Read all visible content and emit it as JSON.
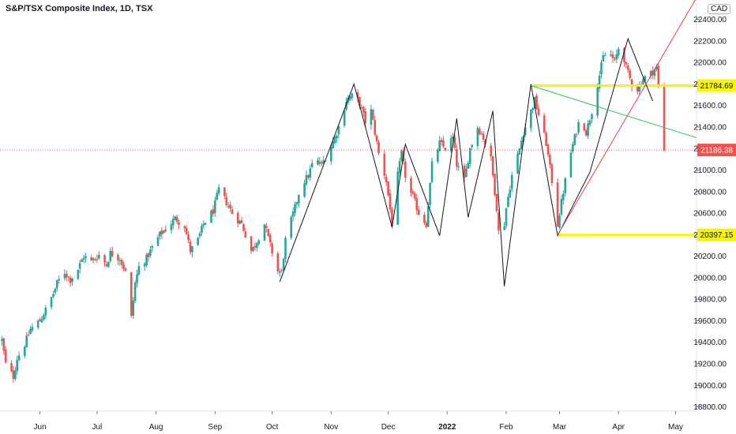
{
  "header": {
    "title": "S&P/TSX Composite Index, 1D, TSX",
    "currency": "CAD"
  },
  "colors": {
    "up": "#26a69a",
    "down": "#ef5350",
    "highlight": "#f5f500",
    "trend_red": "#f23645",
    "trend_green": "#22c55e",
    "zigzag": "#131722",
    "axis": "#131722"
  },
  "chart_data": {
    "type": "candlestick",
    "title": "S&P/TSX Composite Index, 1D, TSX",
    "currency": "CAD",
    "x_tick_labels": [
      "Jun",
      "Jul",
      "Aug",
      "Sep",
      "Oct",
      "Nov",
      "Dec",
      "2022",
      "Feb",
      "Mar",
      "Apr",
      "May"
    ],
    "x_tick_dates": [
      "2021-06-01",
      "2021-07-01",
      "2021-08-01",
      "2021-09-01",
      "2021-10-01",
      "2021-11-01",
      "2021-12-01",
      "2022-01-01",
      "2022-02-01",
      "2022-03-01",
      "2022-04-01",
      "2022-05-01"
    ],
    "y_tick_values": [
      18800,
      19000,
      19200,
      19400,
      19600,
      19800,
      20000,
      20200,
      20400,
      20600,
      20800,
      21000,
      21200,
      21400,
      21600,
      21800,
      22000,
      22200,
      22400
    ],
    "y_tick_labels": [
      "18800.00",
      "19000.00",
      "19200.00",
      "19400.00",
      "19600.00",
      "19800.00",
      "20000.00",
      "20200.00",
      "20400.00",
      "20600.00",
      "20800.00",
      "21000.00",
      "21200.00",
      "21400.00",
      "21600.00",
      "21800.00",
      "22000.00",
      "22200.00",
      "22400.00"
    ],
    "ylim": [
      18760,
      22580
    ],
    "xlim": [
      "2021-05-11",
      "2022-05-12"
    ],
    "close_series": [
      [
        "2021-05-12",
        19420
      ],
      [
        "2021-05-14",
        19200
      ],
      [
        "2021-05-18",
        19080
      ],
      [
        "2021-05-20",
        19250
      ],
      [
        "2021-05-24",
        19380
      ],
      [
        "2021-05-27",
        19520
      ],
      [
        "2021-06-01",
        19600
      ],
      [
        "2021-06-04",
        19700
      ],
      [
        "2021-06-08",
        19850
      ],
      [
        "2021-06-10",
        19950
      ],
      [
        "2021-06-14",
        20050
      ],
      [
        "2021-06-17",
        19980
      ],
      [
        "2021-06-21",
        20080
      ],
      [
        "2021-06-24",
        20200
      ],
      [
        "2021-06-28",
        20150
      ],
      [
        "2021-07-02",
        20210
      ],
      [
        "2021-07-06",
        20120
      ],
      [
        "2021-07-08",
        20230
      ],
      [
        "2021-07-13",
        20180
      ],
      [
        "2021-07-16",
        20050
      ],
      [
        "2021-07-19",
        19630
      ],
      [
        "2021-07-21",
        19950
      ],
      [
        "2021-07-23",
        20100
      ],
      [
        "2021-07-27",
        20180
      ],
      [
        "2021-07-30",
        20280
      ],
      [
        "2021-08-03",
        20400
      ],
      [
        "2021-08-06",
        20450
      ],
      [
        "2021-08-11",
        20550
      ],
      [
        "2021-08-16",
        20480
      ],
      [
        "2021-08-19",
        20250
      ],
      [
        "2021-08-23",
        20350
      ],
      [
        "2021-08-26",
        20500
      ],
      [
        "2021-08-31",
        20620
      ],
      [
        "2021-09-03",
        20820
      ],
      [
        "2021-09-07",
        20700
      ],
      [
        "2021-09-10",
        20600
      ],
      [
        "2021-09-15",
        20500
      ],
      [
        "2021-09-20",
        20250
      ],
      [
        "2021-09-22",
        20300
      ],
      [
        "2021-09-27",
        20500
      ],
      [
        "2021-09-30",
        20300
      ],
      [
        "2021-10-04",
        20060
      ],
      [
        "2021-10-06",
        20050
      ],
      [
        "2021-10-08",
        20350
      ],
      [
        "2021-10-13",
        20650
      ],
      [
        "2021-10-16",
        20850
      ],
      [
        "2021-10-20",
        20950
      ],
      [
        "2021-10-23",
        21100
      ],
      [
        "2021-10-27",
        21050
      ],
      [
        "2021-10-30",
        21150
      ],
      [
        "2021-11-03",
        21300
      ],
      [
        "2021-11-06",
        21450
      ],
      [
        "2021-11-09",
        21650
      ],
      [
        "2021-11-13",
        21700
      ],
      [
        "2021-11-16",
        21620
      ],
      [
        "2021-11-19",
        21450
      ],
      [
        "2021-11-22",
        21550
      ],
      [
        "2021-11-26",
        21150
      ],
      [
        "2021-11-30",
        20900
      ],
      [
        "2021-12-03",
        20500
      ],
      [
        "2021-12-06",
        20950
      ],
      [
        "2021-12-08",
        21150
      ],
      [
        "2021-12-11",
        20850
      ],
      [
        "2021-12-14",
        20750
      ],
      [
        "2021-12-17",
        20600
      ],
      [
        "2021-12-21",
        20500
      ],
      [
        "2021-12-24",
        21050
      ],
      [
        "2021-12-28",
        21250
      ],
      [
        "2021-12-31",
        21200
      ],
      [
        "2022-01-04",
        21300
      ],
      [
        "2022-01-06",
        21050
      ],
      [
        "2022-01-10",
        20900
      ],
      [
        "2022-01-13",
        21200
      ],
      [
        "2022-01-17",
        21400
      ],
      [
        "2022-01-20",
        21300
      ],
      [
        "2022-01-24",
        21100
      ],
      [
        "2022-01-27",
        20650
      ],
      [
        "2022-01-29",
        20200
      ],
      [
        "2022-02-01",
        20650
      ],
      [
        "2022-02-04",
        20950
      ],
      [
        "2022-02-08",
        21200
      ],
      [
        "2022-02-10",
        21350
      ],
      [
        "2022-02-13",
        21500
      ],
      [
        "2022-02-16",
        21650
      ],
      [
        "2022-02-19",
        21450
      ],
      [
        "2022-02-22",
        21250
      ],
      [
        "2022-02-25",
        20900
      ],
      [
        "2022-02-28",
        20500
      ],
      [
        "2022-03-03",
        20800
      ],
      [
        "2022-03-06",
        21100
      ],
      [
        "2022-03-09",
        21300
      ],
      [
        "2022-03-12",
        21500
      ],
      [
        "2022-03-15",
        21350
      ],
      [
        "2022-03-18",
        21550
      ],
      [
        "2022-03-21",
        21800
      ],
      [
        "2022-03-24",
        22050
      ],
      [
        "2022-03-27",
        22100
      ],
      [
        "2022-03-30",
        22000
      ],
      [
        "2022-04-02",
        22200
      ],
      [
        "2022-04-05",
        21950
      ],
      [
        "2022-04-08",
        21800
      ],
      [
        "2022-04-11",
        21750
      ],
      [
        "2022-04-14",
        21850
      ],
      [
        "2022-04-18",
        21900
      ],
      [
        "2022-04-21",
        21950
      ],
      [
        "2022-04-23",
        21600
      ],
      [
        "2022-04-25",
        21186
      ]
    ],
    "price_levels": [
      {
        "label": "21784.69",
        "value": 21784.69,
        "color": "#f5f500"
      },
      {
        "label": "20397.15",
        "value": 20397.15,
        "color": "#f5f500"
      }
    ],
    "last_price": {
      "label": "21186.38",
      "value": 21186.38,
      "color": "#ef5350"
    },
    "highlight_lines": [
      {
        "from": [
          "2022-02-14",
          21784.69
        ],
        "to": [
          "2022-05-12",
          21784.69
        ]
      },
      {
        "from": [
          "2022-02-28",
          20397.15
        ],
        "to": [
          "2022-05-12",
          20397.15
        ]
      }
    ],
    "zigzag_points": [
      [
        "2021-10-05",
        19960
      ],
      [
        "2021-11-13",
        21800
      ],
      [
        "2021-12-03",
        20470
      ],
      [
        "2021-12-10",
        21240
      ],
      [
        "2021-12-28",
        20390
      ],
      [
        "2022-01-06",
        21480
      ],
      [
        "2022-01-12",
        20560
      ],
      [
        "2022-01-25",
        21550
      ],
      [
        "2022-01-31",
        19920
      ],
      [
        "2022-02-14",
        21800
      ],
      [
        "2022-02-28",
        20390
      ],
      [
        "2022-03-17",
        20980
      ],
      [
        "2022-04-06",
        22220
      ],
      [
        "2022-04-19",
        21640
      ]
    ],
    "trend_lines": [
      {
        "from": [
          "2022-02-28",
          20397.15
        ],
        "to": [
          "2022-05-12",
          22600
        ],
        "color": "#f23645"
      },
      {
        "from": [
          "2022-02-14",
          21784.69
        ],
        "to": [
          "2022-05-12",
          21300
        ],
        "color": "#22c55e"
      }
    ]
  }
}
